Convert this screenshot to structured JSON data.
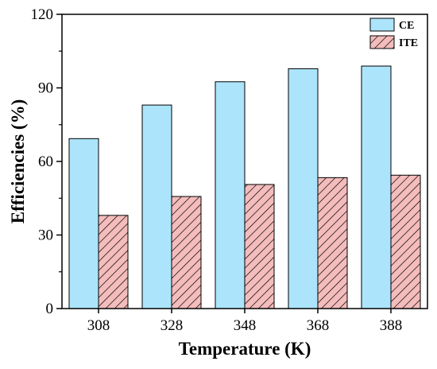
{
  "chart_data": {
    "type": "bar",
    "title": "",
    "xlabel": "Temperature (K)",
    "ylabel": "Efficiencies (%)",
    "categories": [
      "308",
      "328",
      "348",
      "368",
      "388"
    ],
    "ylim": [
      0,
      120
    ],
    "yticks": [
      "0",
      "30",
      "60",
      "90",
      "120"
    ],
    "grid": false,
    "legend_position": "top-right",
    "series": [
      {
        "name": "CE",
        "values": [
          69.3,
          83.0,
          92.5,
          97.8,
          98.9
        ],
        "color": "#ace5fb",
        "pattern": "solid"
      },
      {
        "name": "ITE",
        "values": [
          38.0,
          45.7,
          50.6,
          53.4,
          54.4
        ],
        "color": "#f4bcbc",
        "pattern": "diagonal-hatch"
      }
    ]
  }
}
